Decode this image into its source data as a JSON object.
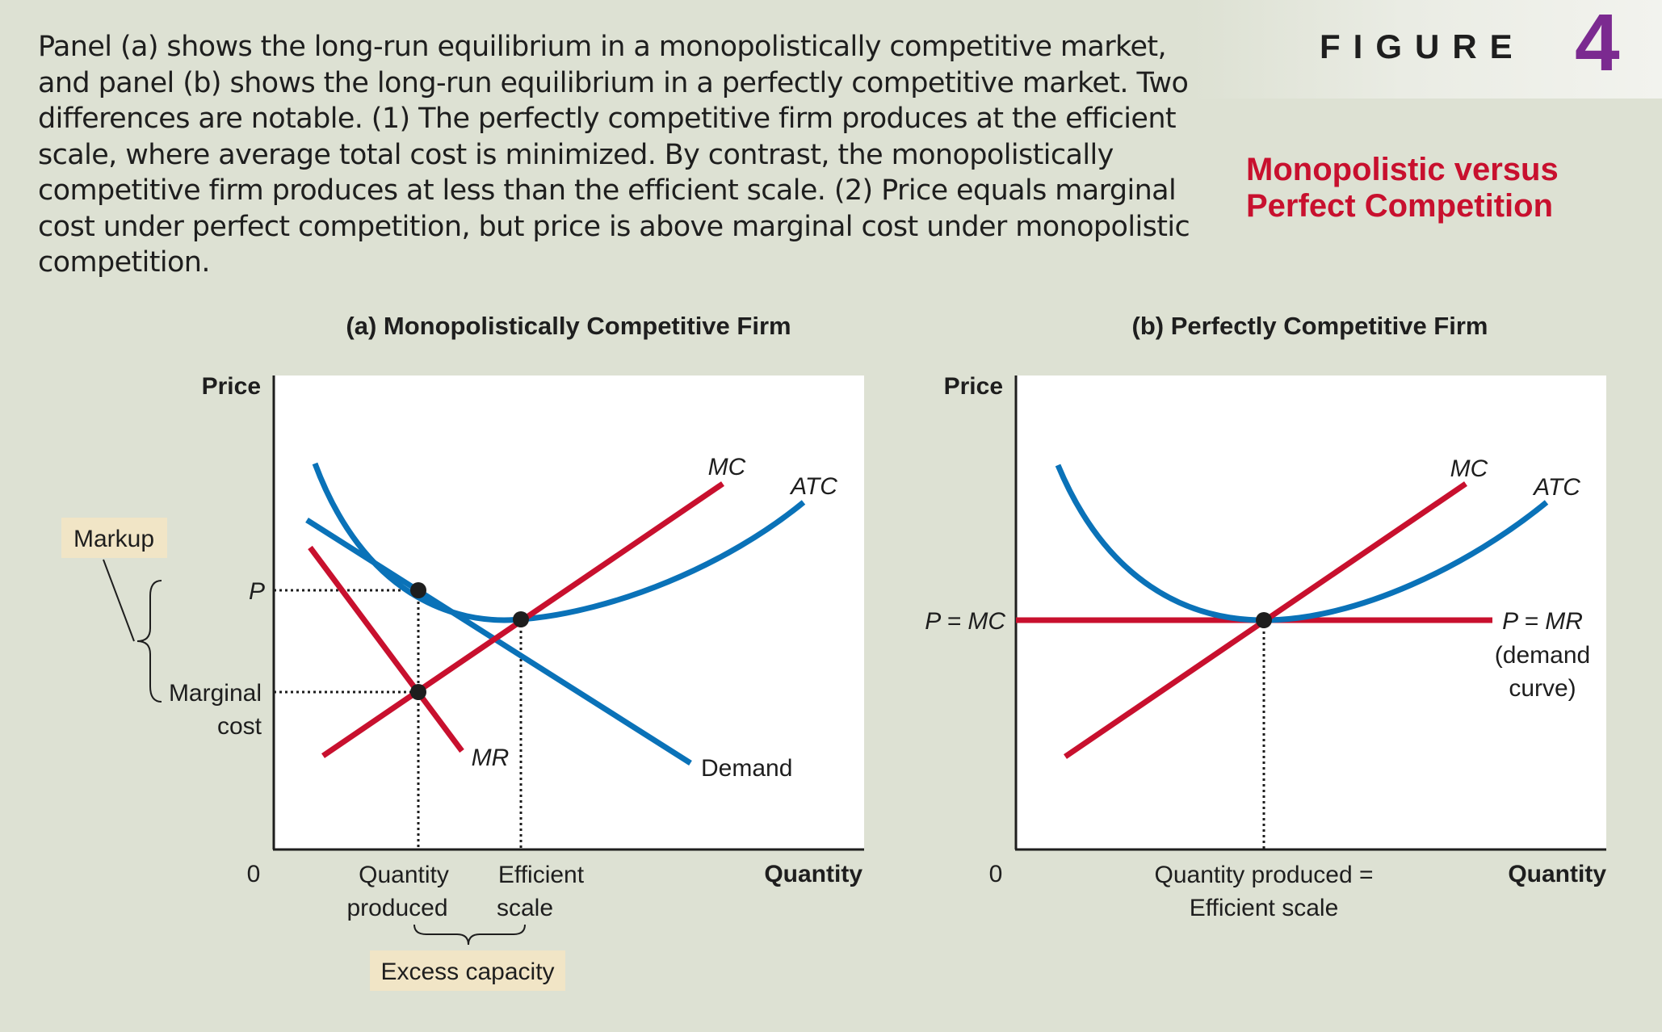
{
  "caption": "Panel (a) shows the long-run equilibrium in a monopolistically competitive market, and panel (b) shows the long-run equilibrium in a perfectly competitive market. Two differences are notable. (1) The perfectly competitive firm produces at the efficient scale, where average total cost is minimized. By contrast, the monopolistically competitive firm produces at less than the efficient scale. (2) Price equals marginal cost under perfect competition, but price is above marginal cost under monopolistic competition.",
  "figure": {
    "label": "FIGURE",
    "number": "4",
    "title_line1": "Monopolistic versus",
    "title_line2": "Perfect Competition"
  },
  "panel_a": {
    "title": "(a) Monopolistically Competitive Firm",
    "y_axis": "Price",
    "x_axis": "Quantity",
    "origin": "0",
    "mc": "MC",
    "atc": "ATC",
    "mr": "MR",
    "demand": "Demand",
    "p": "P",
    "marginal_cost_1": "Marginal",
    "marginal_cost_2": "cost",
    "markup": "Markup",
    "qty_produced_1": "Quantity",
    "qty_produced_2": "produced",
    "eff_scale_1": "Efficient",
    "eff_scale_2": "scale",
    "excess_capacity": "Excess capacity"
  },
  "panel_b": {
    "title": "(b) Perfectly Competitive Firm",
    "y_axis": "Price",
    "x_axis": "Quantity",
    "origin": "0",
    "mc": "MC",
    "atc": "ATC",
    "p_mc": "P = MC",
    "p_mr": "P = MR",
    "demand_1": "(demand",
    "demand_2": "curve)",
    "qty_1": "Quantity produced =",
    "qty_2": "Efficient scale"
  },
  "colors": {
    "blue": "#0a72b8",
    "red": "#c8102e",
    "purple": "#7b2a90",
    "tag": "#f1e5c6"
  }
}
